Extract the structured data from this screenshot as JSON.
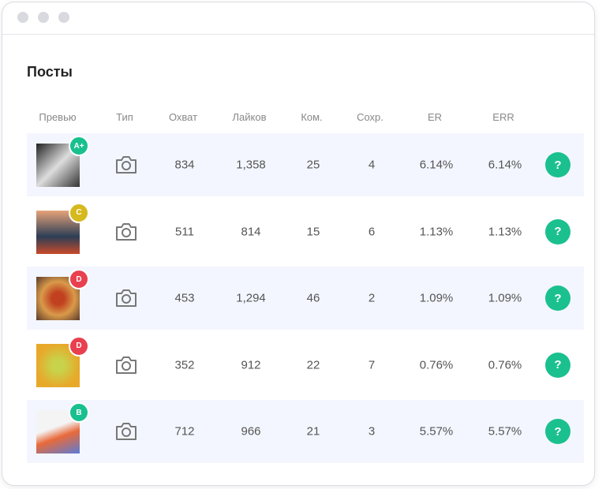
{
  "header": {
    "title": "Посты"
  },
  "table": {
    "columns": [
      "Превью",
      "Тип",
      "Охват",
      "Лайков",
      "Ком.",
      "Сохр.",
      "ER",
      "ERR"
    ],
    "rows": [
      {
        "grade": "A+",
        "badge_color": "#19c08f",
        "reach": "834",
        "likes": "1,358",
        "comments": "25",
        "saves": "4",
        "er": "6.14%",
        "err": "6.14%",
        "action": "?"
      },
      {
        "grade": "C",
        "badge_color": "#d6b91e",
        "reach": "511",
        "likes": "814",
        "comments": "15",
        "saves": "6",
        "er": "1.13%",
        "err": "1.13%",
        "action": "?"
      },
      {
        "grade": "D",
        "badge_color": "#e8404f",
        "reach": "453",
        "likes": "1,294",
        "comments": "46",
        "saves": "2",
        "er": "1.09%",
        "err": "1.09%",
        "action": "?"
      },
      {
        "grade": "D",
        "badge_color": "#e8404f",
        "reach": "352",
        "likes": "912",
        "comments": "22",
        "saves": "7",
        "er": "0.76%",
        "err": "0.76%",
        "action": "?"
      },
      {
        "grade": "B",
        "badge_color": "#19c08f",
        "reach": "712",
        "likes": "966",
        "comments": "21",
        "saves": "3",
        "er": "5.57%",
        "err": "5.57%",
        "action": "?"
      }
    ]
  }
}
